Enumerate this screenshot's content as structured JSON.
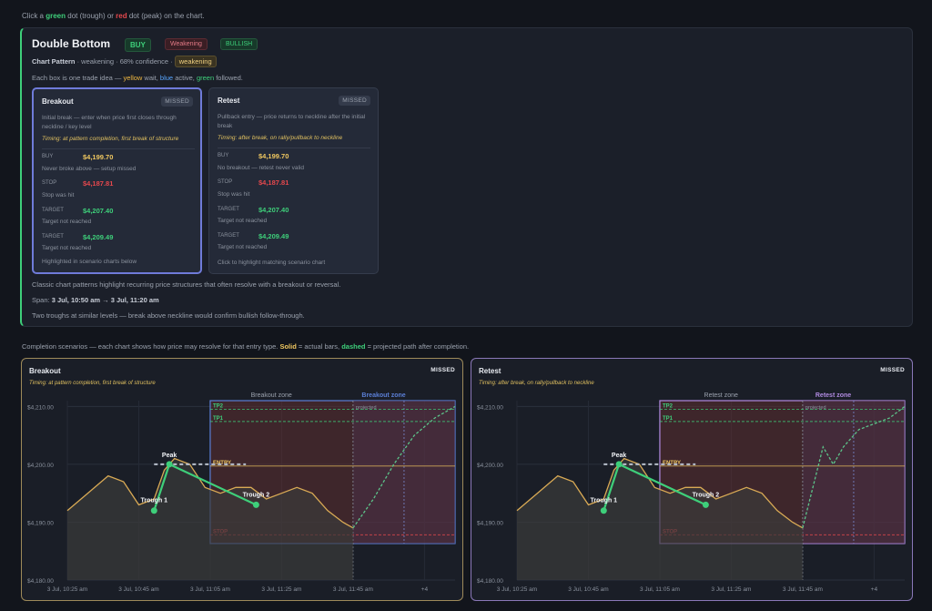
{
  "hint": {
    "pre": "Click a ",
    "green": "green",
    "mid": " dot (trough) or ",
    "red": "red",
    "post": " dot (peak) on the chart."
  },
  "card": {
    "title": "Double Bottom",
    "badges": {
      "buy": "BUY",
      "weakening": "Weakening",
      "bullish": "BULLISH"
    },
    "sub_label": "Chart Pattern",
    "sub_text": " · weakening · 68% confidence · ",
    "sub_pill": "weakening",
    "legend": {
      "a": "Each box is one trade idea — ",
      "yellow": "yellow",
      "b": " wait, ",
      "blue": "blue",
      "c": " active, ",
      "green": "green",
      "d": " followed."
    },
    "boxes": [
      {
        "title": "Breakout",
        "status": "MISSED",
        "desc": "Initial break — enter when price first closes through neckline / key level",
        "timing": "Timing: at pattern completion, first break of structure",
        "rows": [
          {
            "label": "BUY",
            "value": "$4,199.70",
            "note": "Never broke above — setup missed"
          },
          {
            "label": "STOP",
            "value": "$4,187.81",
            "note": "Stop was hit"
          },
          {
            "label": "TARGET",
            "value": "$4,207.40",
            "note": "Target not reached"
          },
          {
            "label": "TARGET",
            "value": "$4,209.49",
            "note": "Target not reached"
          }
        ],
        "foot": "Highlighted in scenario charts below"
      },
      {
        "title": "Retest",
        "status": "MISSED",
        "desc": "Pullback entry — price returns to neckline after the initial break",
        "timing": "Timing: after break, on rally/pullback to neckline",
        "rows": [
          {
            "label": "BUY",
            "value": "$4,199.70",
            "note": "No breakout — retest never valid"
          },
          {
            "label": "STOP",
            "value": "$4,187.81",
            "note": "Stop was hit"
          },
          {
            "label": "TARGET",
            "value": "$4,207.40",
            "note": "Target not reached"
          },
          {
            "label": "TARGET",
            "value": "$4,209.49",
            "note": "Target not reached"
          }
        ],
        "foot": "Click to highlight matching scenario chart"
      }
    ],
    "desc": "Classic chart patterns highlight recurring price structures that often resolve with a breakout or reversal.",
    "span_label": "Span: ",
    "span_value": "3 Jul, 10:50 am → 3 Jul, 11:20 am",
    "summary": "Two troughs at similar levels — break above neckline would confirm bullish follow-through."
  },
  "scenarios_text": {
    "a": "Completion scenarios — each chart shows how price may resolve for that entry type. ",
    "solid": "Solid",
    "b": " = actual bars, ",
    "dashed": "dashed",
    "c": " = projected path after completion."
  },
  "colors": {
    "green": "#3ecf7a",
    "red": "#e5484d",
    "yellow": "#f0c860",
    "blue": "#58a6ff",
    "price": "#d9aa55",
    "breakout_border": "#5b7fd6",
    "retest_border": "#b08ae0"
  },
  "chart_data": [
    {
      "type": "line",
      "panel_title": "Breakout",
      "status": "MISSED",
      "timing": "Timing: at pattern completion, first break of structure",
      "x_ticks": [
        "3 Jul, 10:25 am",
        "3 Jul, 10:45 am",
        "3 Jul, 11:05 am",
        "3 Jul, 11:25 am",
        "3 Jul, 11:45 am",
        "+4"
      ],
      "y_ticks": [
        "$4,210.00",
        "$4,200.00",
        "$4,190.00",
        "$4,180.00"
      ],
      "ylim": [
        4180,
        4211
      ],
      "price_series": [
        {
          "t": 0,
          "v": 4192
        },
        {
          "t": 4,
          "v": 4195
        },
        {
          "t": 8,
          "v": 4198
        },
        {
          "t": 11,
          "v": 4197
        },
        {
          "t": 14,
          "v": 4193
        },
        {
          "t": 17,
          "v": 4194
        },
        {
          "t": 19,
          "v": 4199
        },
        {
          "t": 21,
          "v": 4201
        },
        {
          "t": 24,
          "v": 4200
        },
        {
          "t": 27,
          "v": 4196
        },
        {
          "t": 30,
          "v": 4195
        },
        {
          "t": 33,
          "v": 4196
        },
        {
          "t": 36,
          "v": 4196
        },
        {
          "t": 39,
          "v": 4194
        },
        {
          "t": 42,
          "v": 4195
        },
        {
          "t": 45,
          "v": 4196
        },
        {
          "t": 48,
          "v": 4195
        },
        {
          "t": 51,
          "v": 4192
        },
        {
          "t": 54,
          "v": 4190
        },
        {
          "t": 56,
          "v": 4189
        }
      ],
      "projection": [
        {
          "t": 56,
          "v": 4189
        },
        {
          "t": 60,
          "v": 4194
        },
        {
          "t": 64,
          "v": 4200
        },
        {
          "t": 68,
          "v": 4205
        },
        {
          "t": 72,
          "v": 4208
        },
        {
          "t": 76,
          "v": 4210
        }
      ],
      "pattern_points": [
        {
          "label": "Trough 1",
          "t": 17,
          "v": 4192,
          "kind": "trough"
        },
        {
          "label": "Peak",
          "t": 20,
          "v": 4200,
          "kind": "peak"
        },
        {
          "label": "Trough 2",
          "t": 37,
          "v": 4193,
          "kind": "trough"
        }
      ],
      "neckline": 4200,
      "zone_label": "Breakout zone",
      "zone_label_alt": "Breakout zone",
      "projected_label": "projected",
      "levels": [
        {
          "label": "TP2",
          "v": 4209.49
        },
        {
          "label": "TP1",
          "v": 4207.4
        },
        {
          "label": "ENTRY",
          "v": 4199.7
        },
        {
          "label": "STOP",
          "v": 4187.81
        }
      ]
    },
    {
      "type": "line",
      "panel_title": "Retest",
      "status": "MISSED",
      "timing": "Timing: after break, on rally/pullback to neckline",
      "x_ticks": [
        "3 Jul, 10:25 am",
        "3 Jul, 10:45 am",
        "3 Jul, 11:05 am",
        "3 Jul, 11:25 am",
        "3 Jul, 11:45 am",
        "+4"
      ],
      "y_ticks": [
        "$4,210.00",
        "$4,200.00",
        "$4,190.00",
        "$4,180.00"
      ],
      "ylim": [
        4180,
        4211
      ],
      "price_series": [
        {
          "t": 0,
          "v": 4192
        },
        {
          "t": 4,
          "v": 4195
        },
        {
          "t": 8,
          "v": 4198
        },
        {
          "t": 11,
          "v": 4197
        },
        {
          "t": 14,
          "v": 4193
        },
        {
          "t": 17,
          "v": 4194
        },
        {
          "t": 19,
          "v": 4199
        },
        {
          "t": 21,
          "v": 4201
        },
        {
          "t": 24,
          "v": 4200
        },
        {
          "t": 27,
          "v": 4196
        },
        {
          "t": 30,
          "v": 4195
        },
        {
          "t": 33,
          "v": 4196
        },
        {
          "t": 36,
          "v": 4196
        },
        {
          "t": 39,
          "v": 4194
        },
        {
          "t": 42,
          "v": 4195
        },
        {
          "t": 45,
          "v": 4196
        },
        {
          "t": 48,
          "v": 4195
        },
        {
          "t": 51,
          "v": 4192
        },
        {
          "t": 54,
          "v": 4190
        },
        {
          "t": 56,
          "v": 4189
        }
      ],
      "projection": [
        {
          "t": 56,
          "v": 4189
        },
        {
          "t": 58,
          "v": 4196
        },
        {
          "t": 60,
          "v": 4203
        },
        {
          "t": 62,
          "v": 4200
        },
        {
          "t": 64,
          "v": 4203
        },
        {
          "t": 67,
          "v": 4206
        },
        {
          "t": 70,
          "v": 4207
        },
        {
          "t": 73,
          "v": 4208
        },
        {
          "t": 76,
          "v": 4210
        }
      ],
      "pattern_points": [
        {
          "label": "Trough 1",
          "t": 17,
          "v": 4192,
          "kind": "trough"
        },
        {
          "label": "Peak",
          "t": 20,
          "v": 4200,
          "kind": "peak"
        },
        {
          "label": "Trough 2",
          "t": 37,
          "v": 4193,
          "kind": "trough"
        }
      ],
      "neckline": 4200,
      "zone_label": "Retest zone",
      "zone_label_alt": "Retest zone",
      "projected_label": "projected",
      "levels": [
        {
          "label": "TP2",
          "v": 4209.49
        },
        {
          "label": "TP1",
          "v": 4207.4
        },
        {
          "label": "ENTRY",
          "v": 4199.7
        },
        {
          "label": "STOP",
          "v": 4187.81
        }
      ]
    }
  ]
}
